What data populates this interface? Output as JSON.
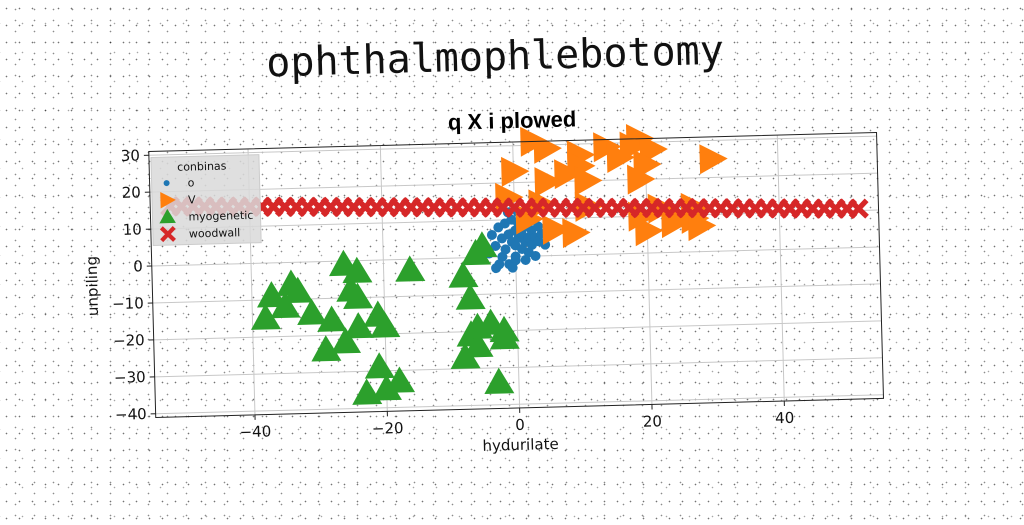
{
  "page_title": "ophthalmophlebotomy",
  "chart_data": {
    "type": "scatter",
    "title": "q X i plowed",
    "xlabel": "hydurilate",
    "ylabel": "unpiling",
    "xlim": [
      -55,
      55
    ],
    "ylim": [
      -41,
      31
    ],
    "xticks": [
      -40,
      -20,
      0,
      20,
      40
    ],
    "yticks": [
      30,
      20,
      10,
      0,
      -10,
      -20,
      -30,
      -40
    ],
    "xtick_labels": [
      "−40",
      "−20",
      "0",
      "20",
      "40"
    ],
    "ytick_labels": [
      "30",
      "20",
      "10",
      "0",
      "−10",
      "−20",
      "−30",
      "−40"
    ],
    "grid": true,
    "legend": {
      "title": "conbinas",
      "placement": "upper-left"
    },
    "series": [
      {
        "name": "o",
        "marker": "circle",
        "color": "#1f77b4",
        "points": [
          [
            -3.5,
            6
          ],
          [
            -3,
            3
          ],
          [
            -2.5,
            8
          ],
          [
            -2,
            5
          ],
          [
            -2,
            0
          ],
          [
            -1.5,
            9
          ],
          [
            -1.5,
            2
          ],
          [
            -1,
            6
          ],
          [
            -1,
            -2
          ],
          [
            -0.5,
            4
          ],
          [
            -0.5,
            10
          ],
          [
            0,
            7
          ],
          [
            0,
            3
          ],
          [
            0,
            0
          ],
          [
            0.5,
            5
          ],
          [
            0.5,
            9
          ],
          [
            1,
            2
          ],
          [
            1,
            6
          ],
          [
            1.5,
            4
          ],
          [
            1.5,
            8
          ],
          [
            2,
            1
          ],
          [
            2,
            5
          ],
          [
            2.5,
            3
          ],
          [
            2.5,
            7
          ],
          [
            3,
            5
          ],
          [
            3,
            0
          ],
          [
            3.5,
            4
          ],
          [
            4,
            6
          ],
          [
            -4,
            1
          ],
          [
            4.5,
            3
          ],
          [
            -1,
            12
          ],
          [
            1,
            11
          ],
          [
            0,
            -1
          ],
          [
            -2.5,
            -2
          ],
          [
            2,
            9
          ],
          [
            3.5,
            8
          ],
          [
            -3,
            -3
          ],
          [
            1.5,
            -1
          ],
          [
            0.5,
            12
          ],
          [
            -0.5,
            -3
          ]
        ]
      },
      {
        "name": "V",
        "marker": "triangle-right",
        "color": "#ff7f0e",
        "points": [
          [
            3,
            31
          ],
          [
            5,
            29
          ],
          [
            10,
            27
          ],
          [
            14,
            29
          ],
          [
            19,
            31
          ],
          [
            18,
            29
          ],
          [
            21,
            28
          ],
          [
            10,
            24
          ],
          [
            16,
            26
          ],
          [
            20,
            24
          ],
          [
            30,
            25
          ],
          [
            0,
            23
          ],
          [
            8,
            22
          ],
          [
            11,
            20
          ],
          [
            19,
            20
          ],
          [
            -1,
            16
          ],
          [
            4,
            14
          ],
          [
            11,
            13
          ],
          [
            2,
            10
          ],
          [
            22,
            12
          ],
          [
            24,
            10
          ],
          [
            27,
            12
          ],
          [
            6,
            7
          ],
          [
            9,
            6
          ],
          [
            20,
            6
          ],
          [
            24,
            8
          ],
          [
            27,
            9
          ],
          [
            28,
            7
          ],
          [
            5,
            20
          ],
          [
            19,
            10
          ]
        ]
      },
      {
        "name": "myogenetic",
        "marker": "triangle-up",
        "color": "#2ca02c",
        "points": [
          [
            -37,
            -9
          ],
          [
            -35,
            -12
          ],
          [
            -34,
            -6
          ],
          [
            -33,
            -8
          ],
          [
            -38,
            -15
          ],
          [
            -31,
            -14
          ],
          [
            -29,
            -24
          ],
          [
            -28,
            -16
          ],
          [
            -26,
            -22
          ],
          [
            -26,
            -1
          ],
          [
            -25,
            -8
          ],
          [
            -24,
            -3
          ],
          [
            -24,
            -10
          ],
          [
            -24,
            -18
          ],
          [
            -23,
            -36
          ],
          [
            -21,
            -15
          ],
          [
            -20,
            -18
          ],
          [
            -21,
            -29
          ],
          [
            -20,
            -35
          ],
          [
            -18,
            -33
          ],
          [
            -16,
            -3
          ],
          [
            -8,
            -27
          ],
          [
            -8,
            -5
          ],
          [
            -7,
            -11
          ],
          [
            -7,
            -21
          ],
          [
            -6,
            -19
          ],
          [
            -6,
            -24
          ],
          [
            -5,
            3
          ],
          [
            -4,
            -18
          ],
          [
            -2,
            -20
          ],
          [
            -2,
            -22
          ],
          [
            -3,
            -34
          ],
          [
            -6,
            1
          ]
        ]
      },
      {
        "name": "woodwall",
        "marker": "x",
        "color": "#d62728",
        "line": {
          "x_start": -52,
          "x_end": 52,
          "y_start": 16,
          "y_end": 10.5,
          "count": 61
        }
      }
    ]
  }
}
